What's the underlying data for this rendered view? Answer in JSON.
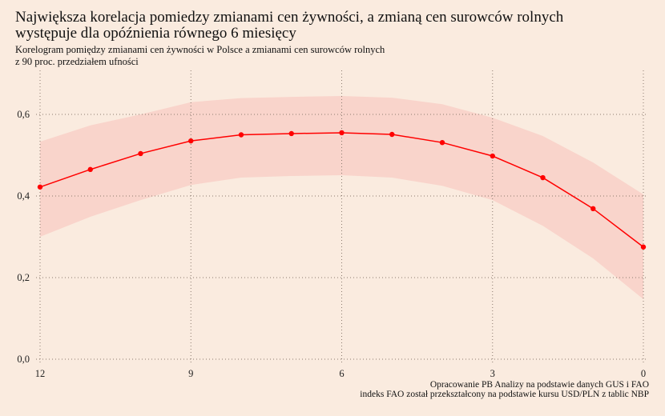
{
  "chart_data": {
    "type": "line",
    "title_lines": [
      "Największa korelacja pomiedzy zmianami cen żywności, a zmianą cen surowców rolnych",
      "występuje dla opóźnienia równego 6 miesięcy"
    ],
    "subtitle_lines": [
      "Korelogram pomiędzy zmianami cen żywności w Polsce a zmianami cen surowców rolnych",
      "z 90 proc. przedziałem ufności"
    ],
    "source_lines": [
      "Opracowanie PB Analizy na podstawie danych GUS i FAO",
      "indeks FAO został przekształcony na podstawie kursu USD/PLN z tablic NBP"
    ],
    "x": [
      12,
      11,
      10,
      9,
      8,
      7,
      6,
      5,
      4,
      3,
      2,
      1,
      0
    ],
    "series": [
      {
        "name": "korelacja",
        "values": [
          0.422,
          0.465,
          0.504,
          0.535,
          0.55,
          0.553,
          0.555,
          0.551,
          0.531,
          0.498,
          0.445,
          0.369,
          0.275
        ]
      },
      {
        "name": "upper",
        "values": [
          0.533,
          0.573,
          0.6,
          0.63,
          0.64,
          0.643,
          0.645,
          0.641,
          0.625,
          0.592,
          0.547,
          0.482,
          0.404
        ]
      },
      {
        "name": "lower",
        "values": [
          0.3,
          0.349,
          0.39,
          0.427,
          0.445,
          0.449,
          0.451,
          0.445,
          0.425,
          0.39,
          0.327,
          0.247,
          0.147
        ]
      }
    ],
    "xlim": [
      12,
      0
    ],
    "ylim": [
      0,
      0.6
    ],
    "xticks": [
      12,
      9,
      6,
      3,
      0
    ],
    "xtick_labels": [
      "12",
      "9",
      "6",
      "3",
      "0"
    ],
    "yticks": [
      0,
      0.2,
      0.4,
      0.6
    ],
    "ytick_labels": [
      "0,0",
      "0,2",
      "0,4",
      "0,6"
    ],
    "grid": true,
    "colors": {
      "line": "#ff0000",
      "band": "#f9d4cb",
      "grid": "#8a7a6e"
    }
  }
}
